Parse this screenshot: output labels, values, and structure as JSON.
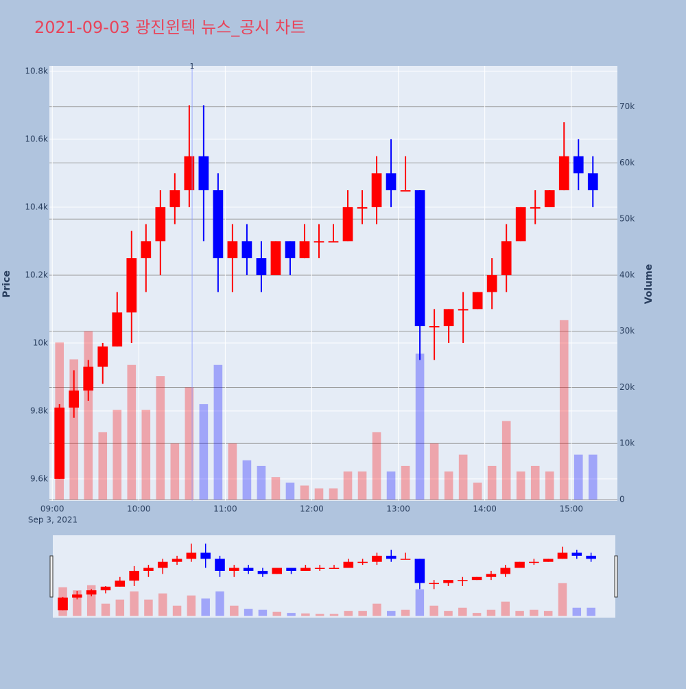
{
  "chart_data": {
    "type": "candlestick",
    "title": "2021-09-03 광진윈텍 뉴스_공시 차트",
    "y_label": "Price",
    "y2_label": "Volume",
    "x_sub_label": "Sep 3, 2021",
    "increasing_color": "#ff0000",
    "decreasing_color": "#0000ff",
    "x": [
      "2021-09-03 09:00",
      "2021-09-03 09:10",
      "2021-09-03 09:20",
      "2021-09-03 09:30",
      "2021-09-03 09:40",
      "2021-09-03 09:50",
      "2021-09-03 10:00",
      "2021-09-03 10:10",
      "2021-09-03 10:20",
      "2021-09-03 10:30",
      "2021-09-03 10:40",
      "2021-09-03 10:50",
      "2021-09-03 11:00",
      "2021-09-03 11:10",
      "2021-09-03 11:20",
      "2021-09-03 11:30",
      "2021-09-03 11:40",
      "2021-09-03 11:50",
      "2021-09-03 12:00",
      "2021-09-03 12:10",
      "2021-09-03 12:20",
      "2021-09-03 12:30",
      "2021-09-03 12:40",
      "2021-09-03 12:50",
      "2021-09-03 13:00",
      "2021-09-03 13:10",
      "2021-09-03 13:20",
      "2021-09-03 13:30",
      "2021-09-03 13:40",
      "2021-09-03 13:50",
      "2021-09-03 14:00",
      "2021-09-03 14:10",
      "2021-09-03 14:20",
      "2021-09-03 14:30",
      "2021-09-03 14:40",
      "2021-09-03 14:50",
      "2021-09-03 15:00",
      "2021-09-03 15:10"
    ],
    "open": [
      9600,
      9810,
      9860,
      9930,
      9990,
      10090,
      10250,
      10300,
      10400,
      10450,
      10550,
      10450,
      10250,
      10300,
      10250,
      10200,
      10300,
      10250,
      10300,
      10300,
      10300,
      10400,
      10400,
      10500,
      10450,
      10450,
      10050,
      10050,
      10100,
      10100,
      10150,
      10200,
      10300,
      10400,
      10400,
      10450,
      10550,
      10500
    ],
    "high": [
      9820,
      9920,
      9950,
      10000,
      10150,
      10330,
      10350,
      10450,
      10500,
      10700,
      10700,
      10500,
      10350,
      10350,
      10300,
      10300,
      10300,
      10350,
      10350,
      10350,
      10450,
      10450,
      10550,
      10600,
      10550,
      10450,
      10100,
      10100,
      10150,
      10150,
      10250,
      10350,
      10400,
      10450,
      10450,
      10650,
      10600,
      10550
    ],
    "low": [
      9600,
      9780,
      9830,
      9880,
      9990,
      10000,
      10150,
      10200,
      10350,
      10400,
      10300,
      10150,
      10150,
      10200,
      10150,
      10200,
      10200,
      10250,
      10250,
      10300,
      10300,
      10350,
      10350,
      10400,
      10450,
      9950,
      9950,
      10000,
      10000,
      10100,
      10100,
      10150,
      10300,
      10350,
      10400,
      10450,
      10450,
      10400
    ],
    "close": [
      9810,
      9860,
      9930,
      9990,
      10090,
      10250,
      10300,
      10400,
      10450,
      10550,
      10450,
      10250,
      10300,
      10250,
      10200,
      10300,
      10250,
      10300,
      10300,
      10300,
      10400,
      10400,
      10500,
      10450,
      10450,
      10050,
      10050,
      10100,
      10100,
      10150,
      10200,
      10300,
      10400,
      10400,
      10450,
      10550,
      10500,
      10450
    ],
    "volume": [
      28000,
      25000,
      30000,
      12000,
      16000,
      24000,
      16000,
      22000,
      10000,
      20000,
      17000,
      24000,
      10000,
      7000,
      6000,
      4000,
      3000,
      2500,
      2000,
      2000,
      5000,
      5000,
      12000,
      5000,
      6000,
      26000,
      10000,
      5000,
      8000,
      3000,
      6000,
      14000,
      5000,
      6000,
      5000,
      32000,
      8000,
      8000
    ],
    "xlim": [
      "2021-09-03 08:58",
      "2021-09-03 15:32"
    ],
    "xticks": [
      {
        "value": "2021-09-03 09:00",
        "label": "09:00"
      },
      {
        "value": "2021-09-03 10:00",
        "label": "10:00"
      },
      {
        "value": "2021-09-03 11:00",
        "label": "11:00"
      },
      {
        "value": "2021-09-03 12:00",
        "label": "12:00"
      },
      {
        "value": "2021-09-03 13:00",
        "label": "13:00"
      },
      {
        "value": "2021-09-03 14:00",
        "label": "14:00"
      },
      {
        "value": "2021-09-03 15:00",
        "label": "15:00"
      }
    ],
    "ylim": [
      9535,
      10816
    ],
    "yticks": [
      {
        "value": 9600,
        "label": "9.6k"
      },
      {
        "value": 9800,
        "label": "9.8k"
      },
      {
        "value": 10000,
        "label": "10k"
      },
      {
        "value": 10200,
        "label": "10.2k"
      },
      {
        "value": 10400,
        "label": "10.4k"
      },
      {
        "value": 10600,
        "label": "10.6k"
      },
      {
        "value": 10800,
        "label": "10.8k"
      }
    ],
    "y2lim": [
      -250,
      77300
    ],
    "y2ticks": [
      0,
      {
        "value": 10000,
        "label": "10k"
      },
      {
        "value": 20000,
        "label": "20k"
      },
      {
        "value": 30000,
        "label": "30k"
      },
      {
        "value": 40000,
        "label": "40k"
      },
      {
        "value": 50000,
        "label": "50k"
      },
      {
        "value": 60000,
        "label": "60k"
      },
      {
        "value": 70000,
        "label": "70k"
      }
    ],
    "annotations": [
      {
        "x": "2021-09-03 10:37",
        "text": "1"
      }
    ],
    "grid": true,
    "rangeslider": true
  }
}
